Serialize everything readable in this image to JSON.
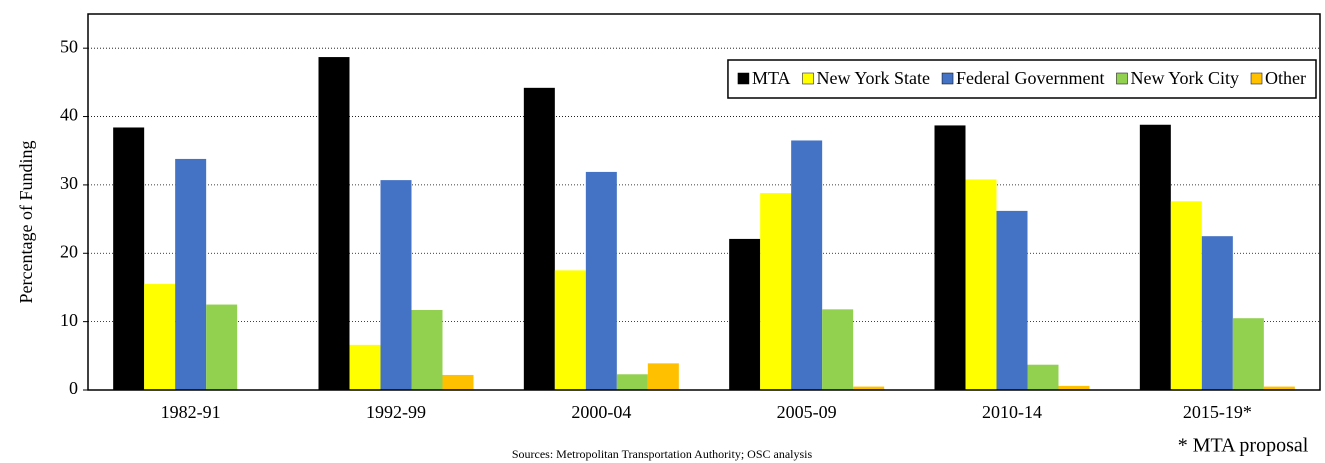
{
  "chart_data": {
    "type": "bar",
    "y_label": "Percentage of Funding",
    "categories": [
      "1982-91",
      "1992-99",
      "2000-04",
      "2005-09",
      "2010-14",
      "2015-19*"
    ],
    "series": [
      {
        "name": "MTA",
        "color": "#000000",
        "values": [
          38.4,
          48.7,
          44.2,
          22.1,
          38.7,
          38.8
        ]
      },
      {
        "name": "New York State",
        "color": "#ffff00",
        "values": [
          15.5,
          6.6,
          17.5,
          28.8,
          30.8,
          27.6
        ]
      },
      {
        "name": "Federal Government",
        "color": "#4472c4",
        "values": [
          33.8,
          30.7,
          31.9,
          36.5,
          26.2,
          22.5
        ]
      },
      {
        "name": "New York City",
        "color": "#92d050",
        "values": [
          12.5,
          11.7,
          2.3,
          11.8,
          3.7,
          10.5
        ]
      },
      {
        "name": "Other",
        "color": "#ffc000",
        "values": [
          0,
          2.2,
          3.9,
          0.5,
          0.6,
          0.5
        ]
      }
    ],
    "ylim": [
      0,
      55
    ],
    "yticks": [
      0,
      10,
      20,
      30,
      40,
      50
    ],
    "grid": true,
    "legend": "top-right",
    "source": "Sources: Metropolitan Transportation Authority; OSC analysis",
    "note": "* MTA proposal"
  }
}
